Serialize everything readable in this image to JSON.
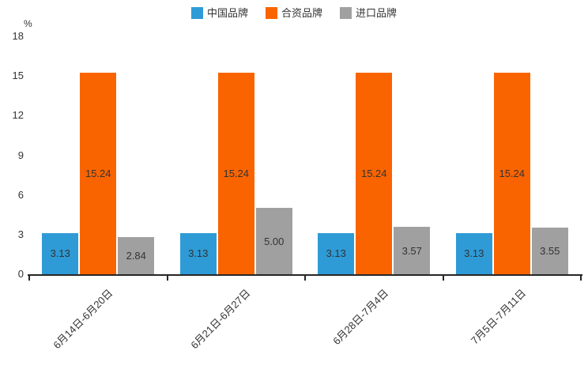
{
  "chart_data": {
    "type": "bar",
    "title": "",
    "unit_label": "%",
    "categories": [
      "6月14日-6月20日",
      "6月21日-6月27日",
      "6月28日-7月4日",
      "7月5日-7月11日"
    ],
    "series": [
      {
        "name": "中国品牌",
        "color": "#2E9BD6",
        "values": [
          3.13,
          3.13,
          3.13,
          3.13
        ]
      },
      {
        "name": "合资品牌",
        "color": "#FA6400",
        "values": [
          15.24,
          15.24,
          15.24,
          15.24
        ]
      },
      {
        "name": "进口品牌",
        "color": "#A0A0A0",
        "values": [
          2.84,
          5.0,
          3.57,
          3.55
        ]
      }
    ],
    "xlabel": "",
    "ylabel": "%",
    "ylim": [
      0,
      18
    ],
    "yticks": [
      0,
      3,
      6,
      9,
      12,
      15,
      18
    ],
    "legend_position": "top",
    "grid": false,
    "value_label_decimals": 2,
    "axis_color": "#262626",
    "text_color": "#333333"
  }
}
